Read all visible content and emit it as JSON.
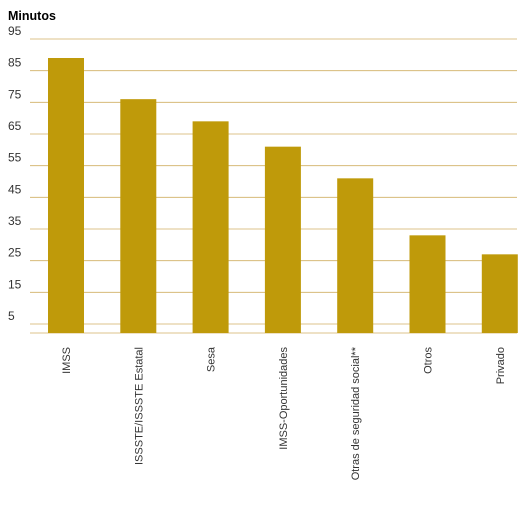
{
  "chart_data": {
    "type": "bar",
    "title": "",
    "ylabel": "Minutos",
    "xlabel": "",
    "categories": [
      "IMSS",
      "ISSSTE/ISSSTE Estatal",
      "Sesa",
      "IMSS-Oportunidades",
      "Otras de seguridad social**",
      "Otros",
      "Privado"
    ],
    "values": [
      89,
      76,
      69,
      61,
      51,
      33,
      27
    ],
    "yticks": [
      5,
      15,
      25,
      35,
      45,
      55,
      65,
      75,
      85,
      95
    ],
    "ylim": [
      0,
      95
    ],
    "grid": true,
    "legend": "none",
    "bar_color": "#bf9a0a",
    "grid_color": "#c8a24a"
  }
}
